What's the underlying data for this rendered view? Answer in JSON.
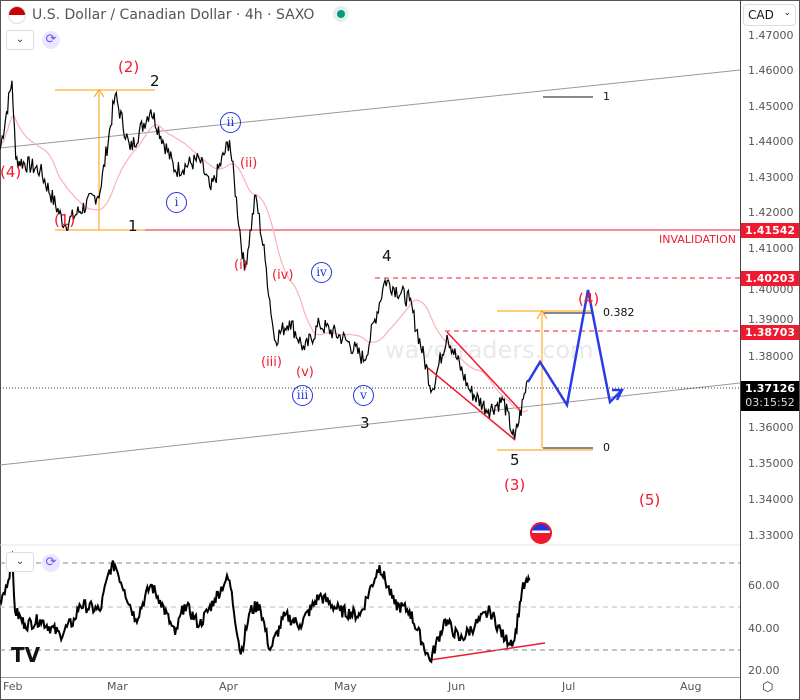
{
  "header": {
    "title": "U.S. Dollar / Canadian Dollar · 4h · SAXO",
    "currency": "CAD"
  },
  "price_axis": [
    "1.47000",
    "1.46000",
    "1.45000",
    "1.44000",
    "1.43000",
    "1.42000",
    "1.41000",
    "1.40000",
    "1.39000",
    "1.38000",
    "1.36000",
    "1.35000",
    "1.34000",
    "1.33000"
  ],
  "price_tags": {
    "invalidation": "1.41542",
    "wave4": "1.40203",
    "fib382": "1.38703",
    "current": "1.37126",
    "countdown": "03:15:52"
  },
  "rsi_axis": [
    "60.00",
    "40.00",
    "20.00"
  ],
  "time_axis": [
    "Feb",
    "Mar",
    "Apr",
    "May",
    "Jun",
    "Jul",
    "Aug"
  ],
  "annotations": {
    "invalidation": "INVALIDATION",
    "red": [
      "(4)",
      "(2)",
      "(1)",
      "(ii)",
      "(i)",
      "(iv)",
      "(iii)",
      "(v)",
      "(3)",
      "(4)",
      "(5)"
    ],
    "black": [
      "2",
      "1",
      "4",
      "3",
      "5"
    ],
    "circled": [
      "ii",
      "i",
      "iv",
      "iii",
      "v"
    ],
    "fib": [
      "1",
      "0.382",
      "0"
    ]
  },
  "watermark": "wavetraders.com",
  "colors": {
    "red": "#f0192d",
    "blue": "#2433e0",
    "orange": "#ff9800",
    "ma": "#f7b3b8"
  },
  "chart_data": {
    "type": "line",
    "symbol": "USDCAD 4h",
    "x_unit": "days since Feb 1",
    "price": [
      [
        -3.2,
        1.4377
      ],
      [
        0,
        1.457
      ],
      [
        1,
        1.435
      ],
      [
        7.5,
        1.432
      ],
      [
        14,
        1.4167
      ],
      [
        23.5,
        1.426
      ],
      [
        27.5,
        1.453
      ],
      [
        31.5,
        1.4377
      ],
      [
        37,
        1.449
      ],
      [
        43.5,
        1.432
      ],
      [
        50,
        1.435
      ],
      [
        53,
        1.4265
      ],
      [
        58,
        1.4404
      ],
      [
        62,
        1.404
      ],
      [
        65,
        1.425
      ],
      [
        67.5,
        1.407
      ],
      [
        70,
        1.3846
      ],
      [
        74,
        1.39
      ],
      [
        78,
        1.3818
      ],
      [
        82,
        1.389
      ],
      [
        89,
        1.3846
      ],
      [
        94,
        1.379
      ],
      [
        99.5,
        1.4013
      ],
      [
        106,
        1.3957
      ],
      [
        112,
        1.3706
      ],
      [
        116,
        1.386
      ],
      [
        122,
        1.3706
      ],
      [
        127,
        1.365
      ],
      [
        131,
        1.3678
      ],
      [
        134,
        1.3566
      ],
      [
        137.5,
        1.3734
      ]
    ],
    "rsi": [
      [
        -3.2,
        53
      ],
      [
        -1,
        62
      ],
      [
        0,
        74
      ],
      [
        0.8,
        48
      ],
      [
        3.5,
        41.5
      ],
      [
        7.5,
        44
      ],
      [
        12.8,
        37
      ],
      [
        16.8,
        44
      ],
      [
        18,
        51
      ],
      [
        23.5,
        48
      ],
      [
        26,
        67
      ],
      [
        27.5,
        69
      ],
      [
        30,
        57.6
      ],
      [
        33,
        44
      ],
      [
        37,
        60
      ],
      [
        39.5,
        53
      ],
      [
        43.5,
        37
      ],
      [
        46,
        51
      ],
      [
        50,
        41.5
      ],
      [
        54,
        53
      ],
      [
        57,
        62
      ],
      [
        58,
        62
      ],
      [
        61,
        28
      ],
      [
        63.5,
        48
      ],
      [
        66,
        51
      ],
      [
        68.8,
        30
      ],
      [
        72.8,
        46
      ],
      [
        76.8,
        41.5
      ],
      [
        82,
        55
      ],
      [
        87.5,
        48
      ],
      [
        92.8,
        46
      ],
      [
        98,
        69
      ],
      [
        102,
        51
      ],
      [
        106,
        48
      ],
      [
        111.5,
        25
      ],
      [
        115.5,
        44
      ],
      [
        119.5,
        34.6
      ],
      [
        123.5,
        41.5
      ],
      [
        127.5,
        48
      ],
      [
        131.5,
        34.6
      ],
      [
        134,
        34.6
      ],
      [
        136,
        57.6
      ],
      [
        138,
        62
      ]
    ],
    "ylim": [
      1.325,
      1.475
    ],
    "rsi_ylim": [
      17,
      80
    ]
  }
}
